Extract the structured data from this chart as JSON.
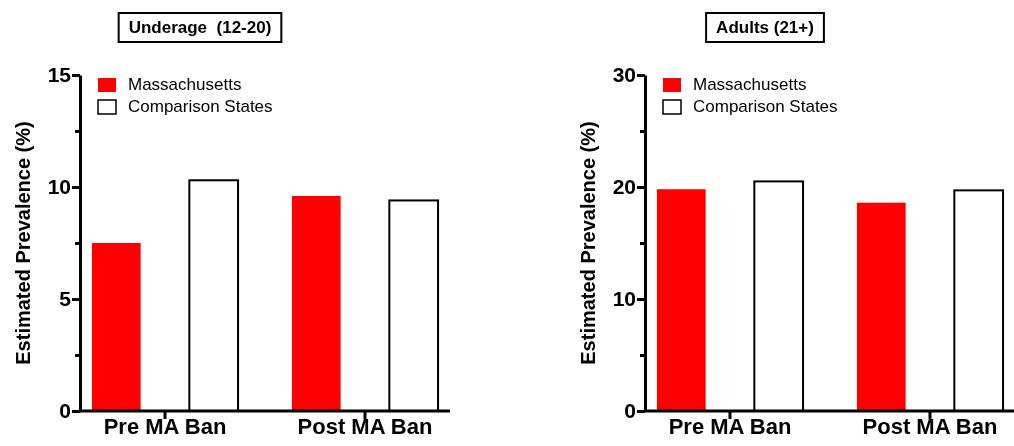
{
  "chart_data": [
    {
      "type": "bar",
      "title": "Underage  (12-20)",
      "ylabel": "Estimated Prevalence  (%)",
      "categories": [
        "Pre MA Ban",
        "Post MA Ban"
      ],
      "series": [
        {
          "name": "Massachusetts",
          "color": "#ff0000",
          "values": [
            7.5,
            9.6
          ]
        },
        {
          "name": "Comparison States",
          "color": "#ffffff",
          "values": [
            10.3,
            9.4
          ]
        }
      ],
      "ylim": [
        0,
        15
      ],
      "yticks": [
        0,
        {
          "value": 2.5,
          "label": null
        },
        5,
        {
          "value": 7.5,
          "label": null
        },
        10,
        {
          "value": 12.5,
          "label": null
        },
        15
      ],
      "legend": "top left"
    },
    {
      "type": "bar",
      "title": "Adults (21+)",
      "ylabel": "Estimated Prevalence  (%)",
      "categories": [
        "Pre MA Ban",
        "Post MA Ban"
      ],
      "series": [
        {
          "name": "Massachusetts",
          "color": "#ff0000",
          "values": [
            19.8,
            18.6
          ]
        },
        {
          "name": "Comparison States",
          "color": "#ffffff",
          "values": [
            20.5,
            19.7
          ]
        }
      ],
      "ylim": [
        0,
        30
      ],
      "yticks": [
        0,
        {
          "value": 5,
          "label": null
        },
        10,
        {
          "value": 15,
          "label": null
        },
        20,
        {
          "value": 25,
          "label": null
        },
        30
      ],
      "legend": "top left"
    }
  ]
}
